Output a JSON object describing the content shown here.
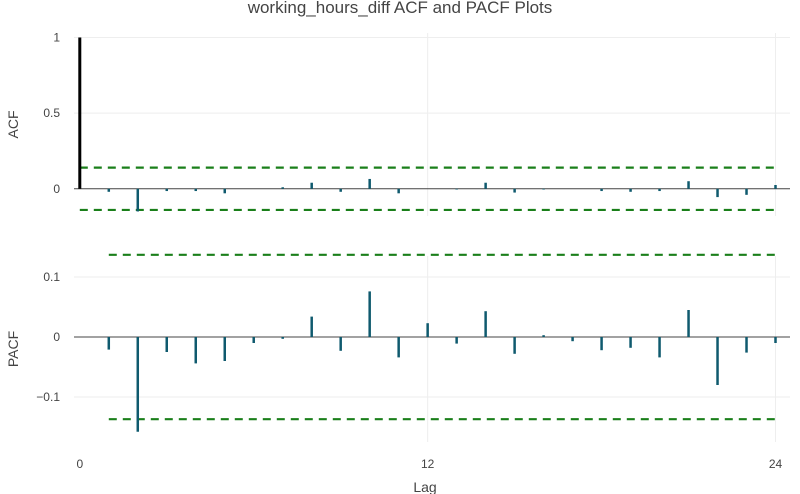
{
  "chart_data": {
    "type": "bar",
    "title": "working_hours_diff ACF and PACF Plots",
    "xlabel": "Lag",
    "x_ticks": [
      {
        "value": 0,
        "label": "0"
      },
      {
        "value": 12,
        "label": "12"
      },
      {
        "value": 24,
        "label": "24"
      }
    ],
    "xlim": [
      -0.2,
      24.5
    ],
    "panels": [
      {
        "name": "acf",
        "ylabel": "ACF",
        "ylim": [
          -0.18,
          1.03
        ],
        "y_ticks": [
          {
            "value": 0,
            "label": "0"
          },
          {
            "value": 0.5,
            "label": "0.5"
          },
          {
            "value": 1,
            "label": "1"
          }
        ],
        "lags": [
          0,
          1,
          2,
          3,
          4,
          5,
          6,
          7,
          8,
          9,
          10,
          11,
          12,
          13,
          14,
          15,
          16,
          17,
          18,
          19,
          20,
          21,
          22,
          23,
          24
        ],
        "values": [
          1.0,
          -0.02,
          -0.15,
          -0.015,
          -0.015,
          -0.03,
          0.0,
          0.01,
          0.04,
          -0.02,
          0.065,
          -0.03,
          0.0,
          -0.005,
          0.04,
          -0.025,
          -0.005,
          0.0,
          -0.015,
          -0.02,
          -0.015,
          0.05,
          -0.055,
          -0.04,
          0.025
        ],
        "confidence_band": {
          "upper": 0.14,
          "lower": -0.14,
          "start_lag": 0
        }
      },
      {
        "name": "pacf",
        "ylabel": "PACF",
        "ylim": [
          -0.175,
          0.135
        ],
        "y_ticks": [
          {
            "value": 0.1,
            "label": "0.1"
          },
          {
            "value": 0,
            "label": "0"
          },
          {
            "value": -0.1,
            "label": "−0.1"
          }
        ],
        "lags": [
          1,
          2,
          3,
          4,
          5,
          6,
          7,
          8,
          9,
          10,
          11,
          12,
          13,
          14,
          15,
          16,
          17,
          18,
          19,
          20,
          21,
          22,
          23,
          24
        ],
        "values": [
          -0.021,
          -0.158,
          -0.025,
          -0.044,
          -0.04,
          -0.01,
          -0.003,
          0.034,
          -0.023,
          0.076,
          -0.034,
          0.023,
          -0.011,
          0.043,
          -0.028,
          0.003,
          -0.007,
          -0.022,
          -0.018,
          -0.034,
          0.045,
          -0.08,
          -0.026,
          -0.01
        ],
        "confidence_band": {
          "upper": 0.137,
          "lower": -0.137,
          "start_lag": 1
        }
      }
    ],
    "colors": {
      "lag0_bar": "#000000",
      "bar": "#0f5a6e",
      "confidence_band": "#1a7f1a",
      "zero_line": "#444444",
      "grid": "#eeeeee"
    },
    "grid": true,
    "legend": "none"
  }
}
